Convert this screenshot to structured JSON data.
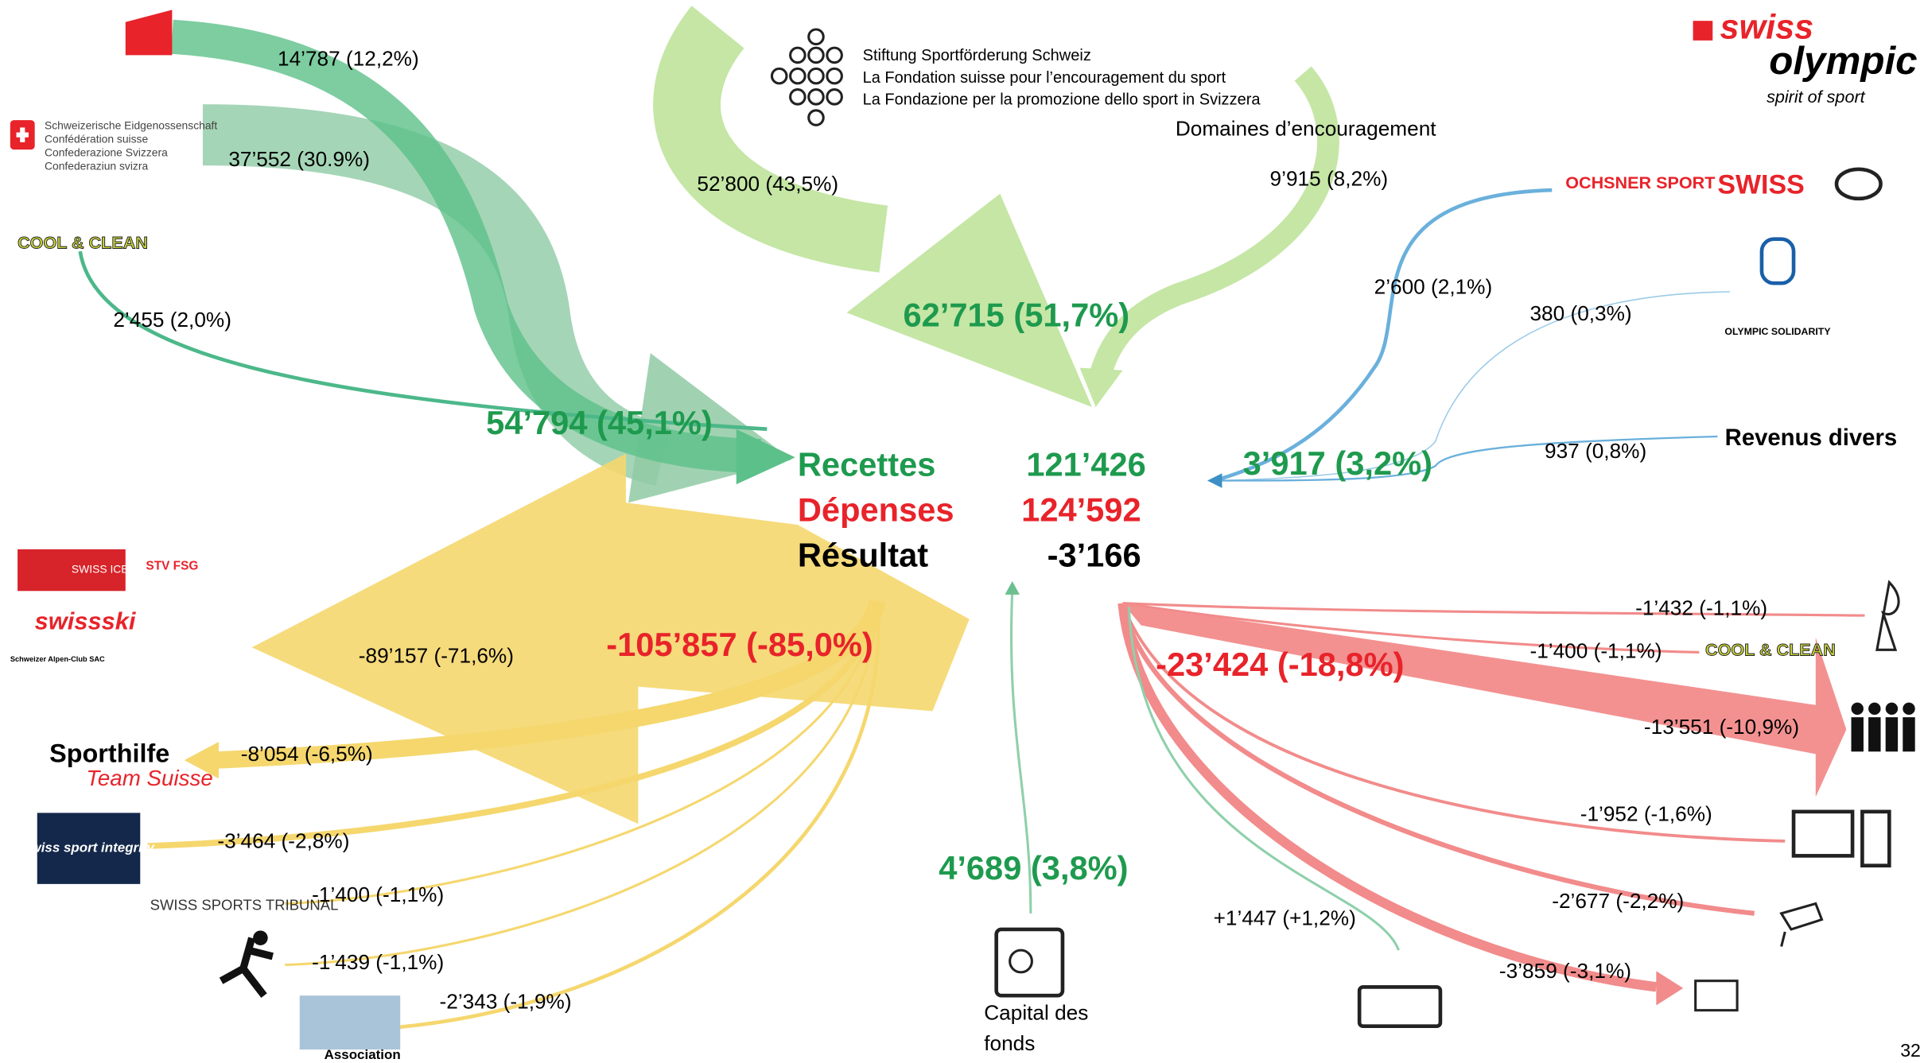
{
  "income": {
    "total": "54’794 (45,1%)",
    "olympic_office": "14’787 (12,2%)",
    "confederation": {
      "lines": [
        "Schweizerische Eidgenossenschaft",
        "Confédération suisse",
        "Confederazione Svizzera",
        "Confederaziun svizra"
      ],
      "amount": "37’552 (30.9%)"
    },
    "cool_clean": {
      "label": "COOL & CLEAN",
      "amount": "2’455 (2,0%)"
    }
  },
  "foundation": {
    "lines": [
      "Stiftung Sportförderung Schweiz",
      "La Fondation suisse pour l’encouragement du sport",
      "La Fondazione per la promozione dello sport in Svizzera"
    ],
    "amount": "52’800 (43,5%)",
    "domains_label": "Domaines d’encouragement",
    "domains_amount": "9’915 (8,2%)",
    "total": "62’715 (51,7%)"
  },
  "other_income": {
    "sponsors": [
      "OCHSNER SPORT",
      "SWISS"
    ],
    "sponsors_amount": "2’600 (2,1%)",
    "solidarity_label": "OLYMPIC SOLIDARITY",
    "solidarity_amount": "380 (0,3%)",
    "various_label": "Revenus divers",
    "various_amount": "937 (0,8%)",
    "total": "3’917 (3,2%)"
  },
  "brand": {
    "swiss": "swiss",
    "olympic": "olympic",
    "tagline": "spirit of sport"
  },
  "summary": {
    "rows": [
      {
        "label": "Recettes",
        "value": "121’426"
      },
      {
        "label": "Dépenses",
        "value": "124’592"
      },
      {
        "label": "Résultat",
        "value": "-3’166"
      }
    ]
  },
  "federations": {
    "logos": [
      "SWISS ICE HOCKEY",
      "STV FSG",
      "swissski",
      "Schweizer Alpen-Club SAC"
    ],
    "amount": "-89’157 (-71,6%)",
    "total": "-105’857 (-85,0%)",
    "others": [
      {
        "label": "Sporthilfe",
        "sublabel": "Team Suisse",
        "amount": "-8’054 (-6,5%)"
      },
      {
        "label": "swiss sport integrity",
        "amount": "-3’464 (-2,8%)"
      },
      {
        "label": "SWISS SPORTS TRIBUNAL",
        "amount": "-1’400 (-1,1%)"
      },
      {
        "amount": "-1’439 (-1,1%)"
      },
      {
        "label": "Association",
        "amount": "-2’343 (-1,9%)"
      }
    ]
  },
  "funds": {
    "label": "Capital des fonds",
    "amount": "4’689 (3,8%)",
    "change": "+1’447 (+1,2%)"
  },
  "operations": {
    "total": "-23’424 (-18,8%)",
    "items": [
      {
        "amount": "-1’432 (-1,1%)"
      },
      {
        "amount": "-1’400 (-1,1%)",
        "label": "COOL & CLEAN"
      },
      {
        "amount": "-13’551 (-10,9%)"
      },
      {
        "amount": "-1’952 (-1,6%)"
      },
      {
        "amount": "-2’677 (-2,2%)"
      },
      {
        "amount": "-3’859 (-3,1%)"
      }
    ]
  },
  "page_number": "32"
}
